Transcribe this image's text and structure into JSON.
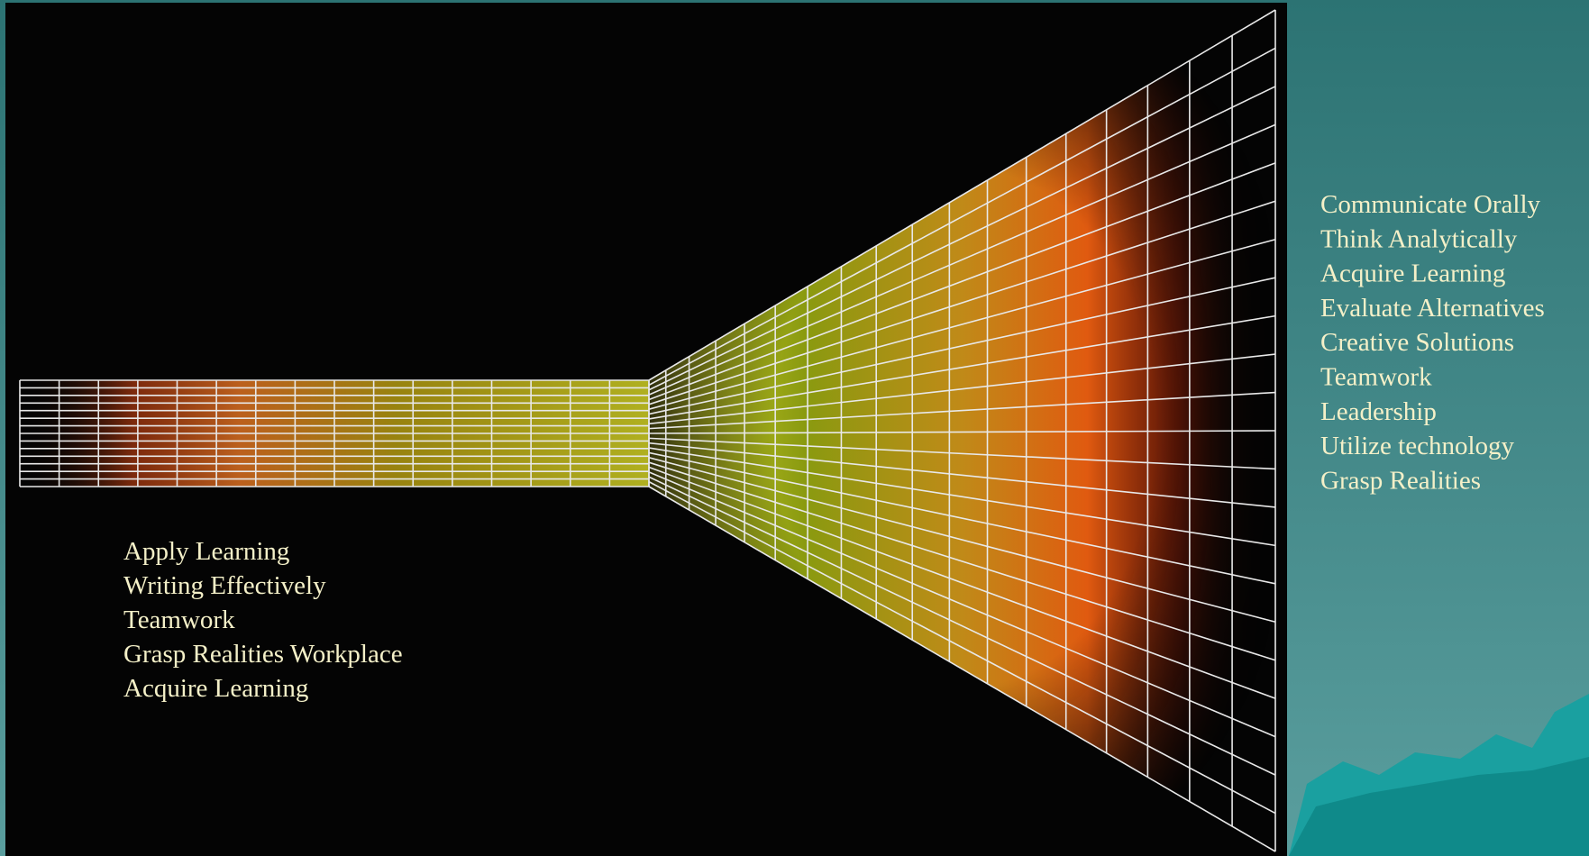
{
  "left_list": [
    "Apply Learning",
    "Writing Effectively",
    "Teamwork",
    "Grasp Realities Workplace",
    "Acquire Learning"
  ],
  "right_list": [
    "Communicate Orally",
    "Think Analytically",
    "Acquire Learning",
    "Evaluate Alternatives",
    "Creative Solutions",
    "Teamwork",
    "Leadership",
    "Utilize technology",
    "Grasp Realities"
  ]
}
